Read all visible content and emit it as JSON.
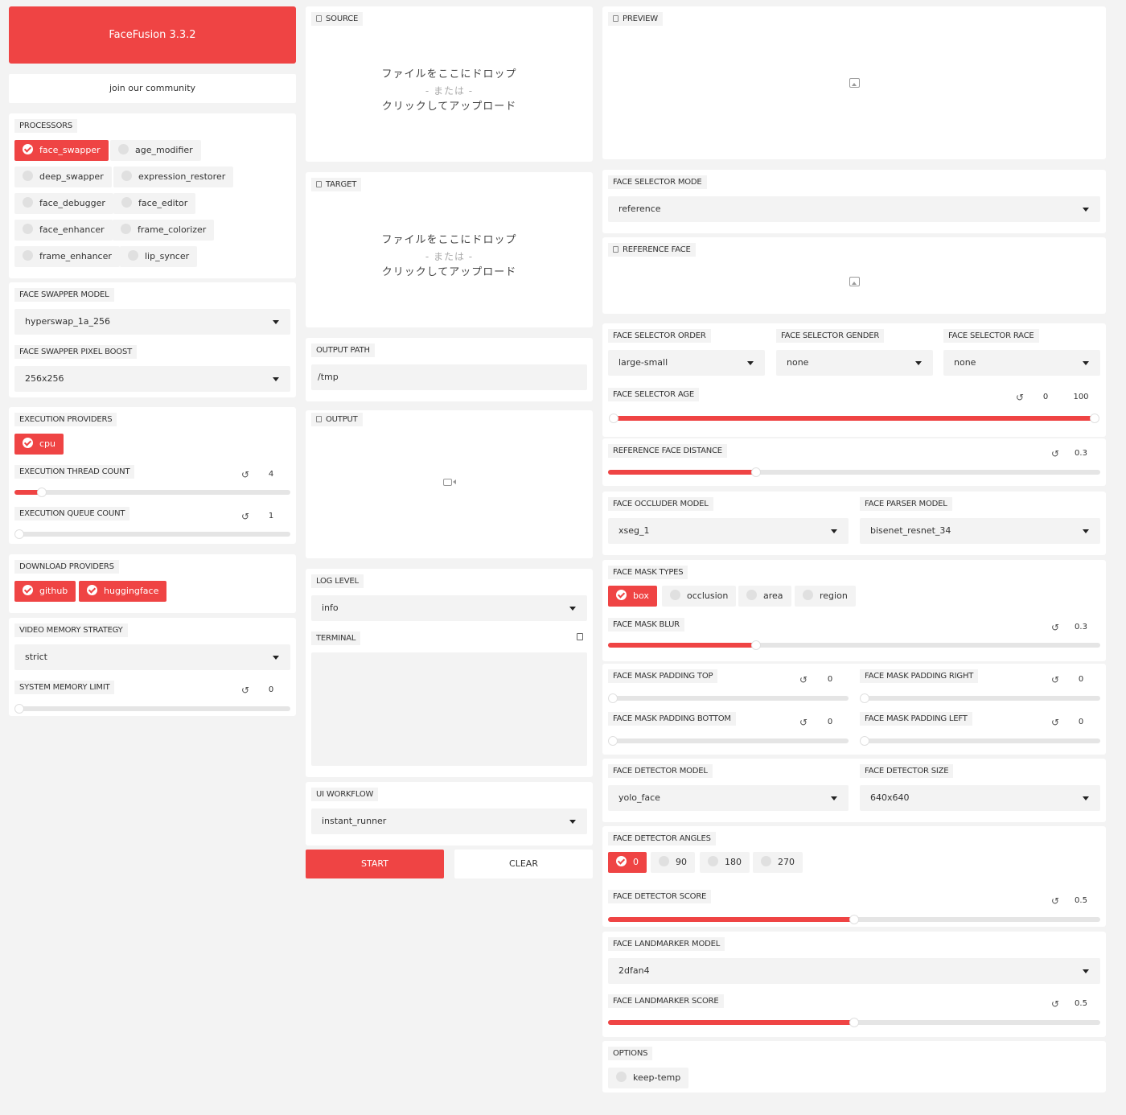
{
  "app": {
    "title": "FaceFusion 3.3.2",
    "community_label": "join our community"
  },
  "processors": {
    "label": "PROCESSORS",
    "items": [
      {
        "label": "face_swapper",
        "checked": true
      },
      {
        "label": "age_modifier",
        "checked": false
      },
      {
        "label": "deep_swapper",
        "checked": false
      },
      {
        "label": "expression_restorer",
        "checked": false
      },
      {
        "label": "face_debugger",
        "checked": false
      },
      {
        "label": "face_editor",
        "checked": false
      },
      {
        "label": "face_enhancer",
        "checked": false
      },
      {
        "label": "frame_colorizer",
        "checked": false
      },
      {
        "label": "frame_enhancer",
        "checked": false
      },
      {
        "label": "lip_syncer",
        "checked": false
      }
    ]
  },
  "face_swapper": {
    "model_label": "FACE SWAPPER MODEL",
    "model_value": "hyperswap_1a_256",
    "pixel_boost_label": "FACE SWAPPER PIXEL BOOST",
    "pixel_boost_value": "256x256"
  },
  "execution": {
    "providers_label": "EXECUTION PROVIDERS",
    "providers": [
      {
        "label": "cpu",
        "checked": true
      }
    ],
    "thread_count_label": "EXECUTION THREAD COUNT",
    "thread_count_value": "4",
    "thread_count_fraction": 0.1,
    "queue_count_label": "EXECUTION QUEUE COUNT",
    "queue_count_value": "1",
    "queue_count_fraction": 0.0
  },
  "download": {
    "providers_label": "DOWNLOAD PROVIDERS",
    "providers": [
      {
        "label": "github",
        "checked": true
      },
      {
        "label": "huggingface",
        "checked": true
      }
    ]
  },
  "memory": {
    "strategy_label": "VIDEO MEMORY STRATEGY",
    "strategy_value": "strict",
    "limit_label": "SYSTEM MEMORY LIMIT",
    "limit_value": "0",
    "limit_fraction": 0.0
  },
  "source": {
    "label": "SOURCE",
    "drop_text": "ファイルをここにドロップ",
    "or_text": "- または -",
    "click_text": "クリックしてアップロード"
  },
  "target": {
    "label": "TARGET",
    "drop_text": "ファイルをここにドロップ",
    "or_text": "- または -",
    "click_text": "クリックしてアップロード"
  },
  "output_path": {
    "label": "OUTPUT PATH",
    "value": "/tmp"
  },
  "output": {
    "label": "OUTPUT"
  },
  "log_level": {
    "label": "LOG LEVEL",
    "value": "info"
  },
  "terminal": {
    "label": "TERMINAL"
  },
  "ui_workflow": {
    "label": "UI WORKFLOW",
    "value": "instant_runner"
  },
  "actions": {
    "start_label": "START",
    "clear_label": "CLEAR",
    "accent": "#ef4444"
  },
  "preview": {
    "label": "PREVIEW"
  },
  "face_selector": {
    "mode_label": "FACE SELECTOR MODE",
    "mode_value": "reference",
    "reference_face_label": "REFERENCE FACE",
    "order_label": "FACE SELECTOR ORDER",
    "order_value": "large-small",
    "gender_label": "FACE SELECTOR GENDER",
    "gender_value": "none",
    "race_label": "FACE SELECTOR RACE",
    "race_value": "none",
    "age_label": "FACE SELECTOR AGE",
    "age_min": "0",
    "age_max": "100"
  },
  "reference_distance": {
    "label": "REFERENCE FACE DISTANCE",
    "value": "0.3",
    "fraction": 0.3
  },
  "face_models": {
    "occluder_label": "FACE OCCLUDER MODEL",
    "occluder_value": "xseg_1",
    "parser_label": "FACE PARSER MODEL",
    "parser_value": "bisenet_resnet_34"
  },
  "face_mask": {
    "types_label": "FACE MASK TYPES",
    "types": [
      {
        "label": "box",
        "checked": true
      },
      {
        "label": "occlusion",
        "checked": false
      },
      {
        "label": "area",
        "checked": false
      },
      {
        "label": "region",
        "checked": false
      }
    ],
    "blur_label": "FACE MASK BLUR",
    "blur_value": "0.3",
    "blur_fraction": 0.3,
    "padding_top_label": "FACE MASK PADDING TOP",
    "padding_top_value": "0",
    "padding_right_label": "FACE MASK PADDING RIGHT",
    "padding_right_value": "0",
    "padding_bottom_label": "FACE MASK PADDING BOTTOM",
    "padding_bottom_value": "0",
    "padding_left_label": "FACE MASK PADDING LEFT",
    "padding_left_value": "0"
  },
  "face_detector": {
    "model_label": "FACE DETECTOR MODEL",
    "model_value": "yolo_face",
    "size_label": "FACE DETECTOR SIZE",
    "size_value": "640x640",
    "angles_label": "FACE DETECTOR ANGLES",
    "angles": [
      {
        "label": "0",
        "checked": true
      },
      {
        "label": "90",
        "checked": false
      },
      {
        "label": "180",
        "checked": false
      },
      {
        "label": "270",
        "checked": false
      }
    ],
    "score_label": "FACE DETECTOR SCORE",
    "score_value": "0.5",
    "score_fraction": 0.5
  },
  "face_landmarker": {
    "model_label": "FACE LANDMARKER MODEL",
    "model_value": "2dfan4",
    "score_label": "FACE LANDMARKER SCORE",
    "score_value": "0.5",
    "score_fraction": 0.5
  },
  "options": {
    "label": "OPTIONS",
    "items": [
      {
        "label": "keep-temp",
        "checked": false
      }
    ]
  }
}
